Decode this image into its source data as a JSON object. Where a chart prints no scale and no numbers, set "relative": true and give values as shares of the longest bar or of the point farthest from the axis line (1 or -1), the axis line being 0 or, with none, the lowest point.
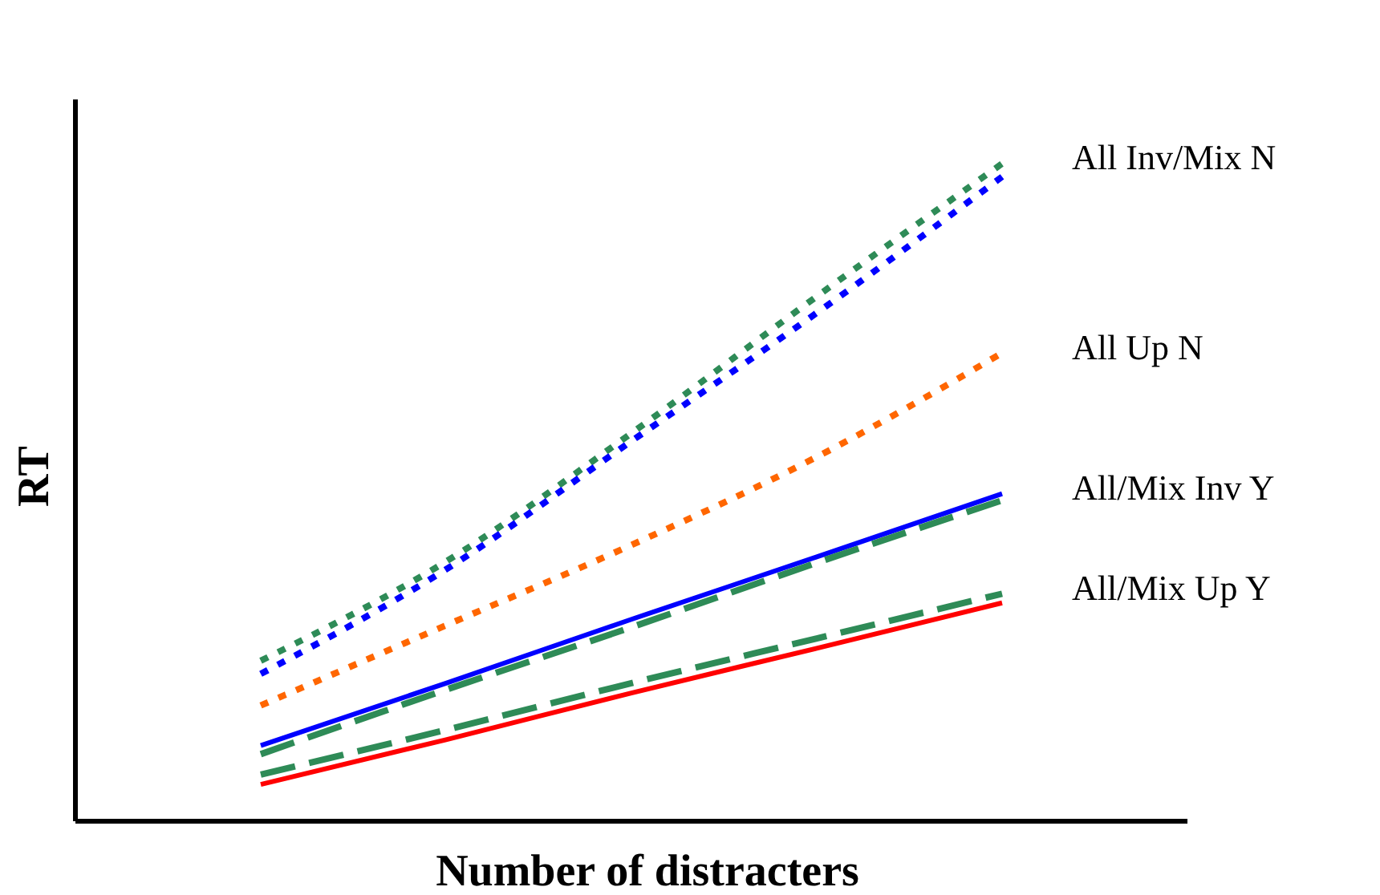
{
  "chart_data": {
    "type": "line",
    "relative": true,
    "xlabel": "Number of distracters",
    "ylabel": "RT",
    "categories": [
      null,
      null,
      null,
      null,
      null,
      null,
      null
    ],
    "marker": "none",
    "series": [
      {
        "name": "All Inv/Mix N",
        "color": "#2e8b57",
        "line_style": "dotted",
        "values": [
          null,
          0.244,
          0.395,
          0.59,
          0.798,
          1,
          null
        ]
      },
      {
        "color": "#0000ff",
        "line_style": "dotted",
        "values": [
          null,
          0.224,
          0.383,
          0.578,
          0.773,
          0.98,
          null
        ]
      },
      {
        "name": "All Up N",
        "color": "#ff6600",
        "line_style": "dotted",
        "values": [
          null,
          0.176,
          0.298,
          0.42,
          0.554,
          0.712,
          null
        ]
      },
      {
        "name": "All/Mix Inv Y",
        "color": "#0000ff",
        "line_style": "solid",
        "values": [
          null,
          0.115,
          0.21,
          0.307,
          0.402,
          0.498,
          null
        ]
      },
      {
        "color": "#2e8b57",
        "line_style": "dashed",
        "values": [
          null,
          0.102,
          0.2,
          0.295,
          0.393,
          0.488,
          null
        ]
      },
      {
        "name": "All/Mix Up Y",
        "color": "#2e8b57",
        "line_style": "dashed",
        "values": [
          null,
          0.071,
          0.139,
          0.21,
          0.278,
          0.346,
          null
        ]
      },
      {
        "color": "#ff0000",
        "line_style": "solid",
        "values": [
          null,
          0.056,
          0.124,
          0.195,
          0.263,
          0.332,
          null
        ]
      }
    ]
  }
}
